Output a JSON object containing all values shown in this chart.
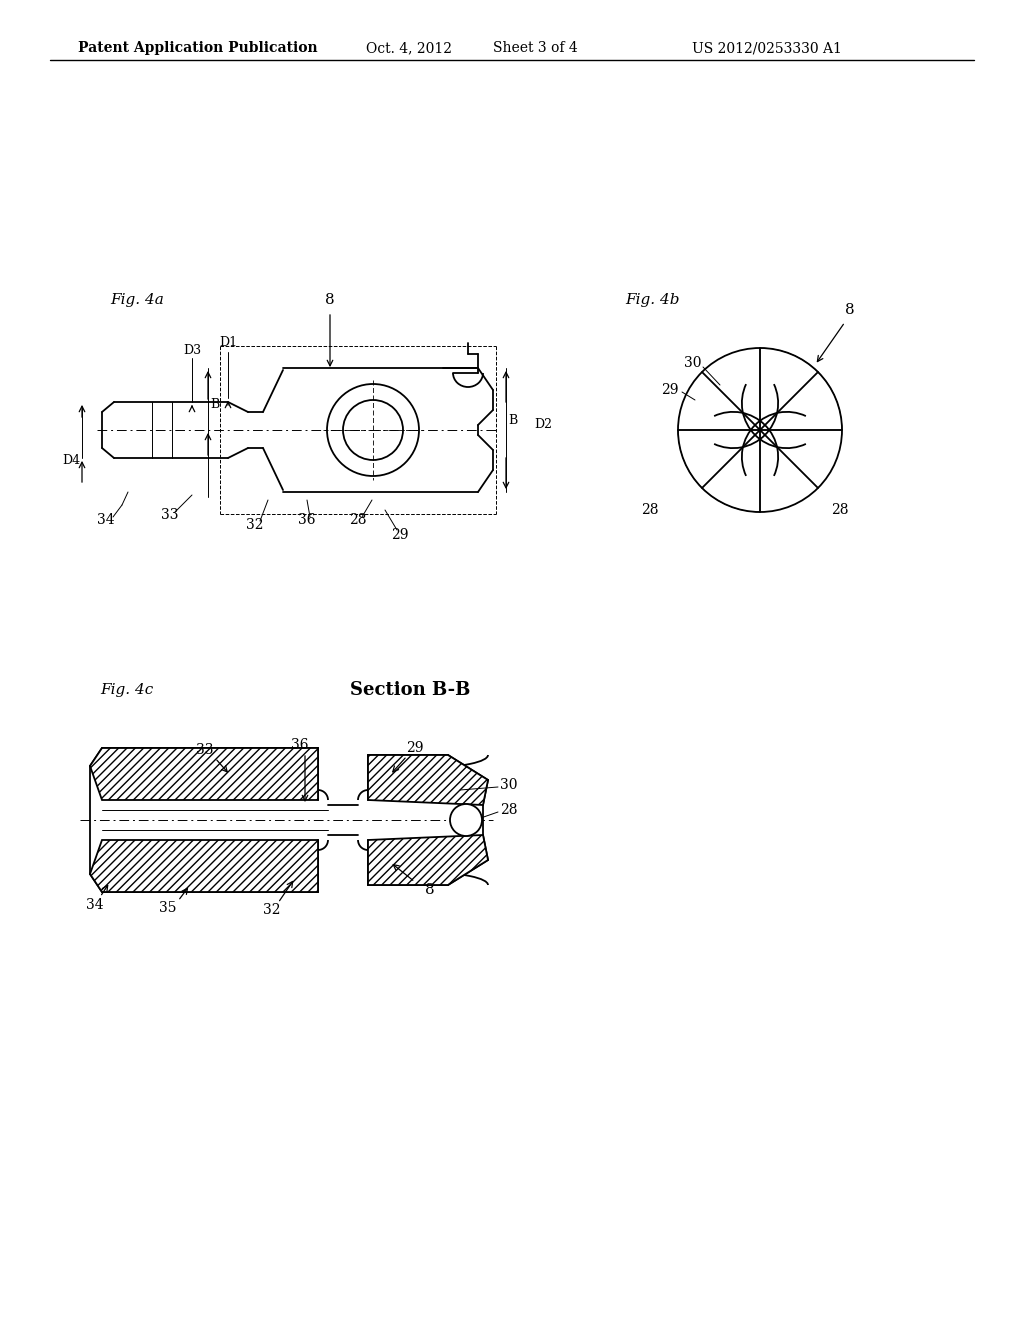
{
  "bg_color": "#ffffff",
  "line_color": "#000000",
  "header_text": "Patent Application Publication",
  "header_date": "Oct. 4, 2012",
  "header_sheet": "Sheet 3 of 4",
  "header_patent": "US 2012/0253330 A1",
  "fig4a_label": "Fig. 4a",
  "fig4b_label": "Fig. 4b",
  "fig4c_label": "Fig. 4c",
  "section_label": "Section B-B"
}
